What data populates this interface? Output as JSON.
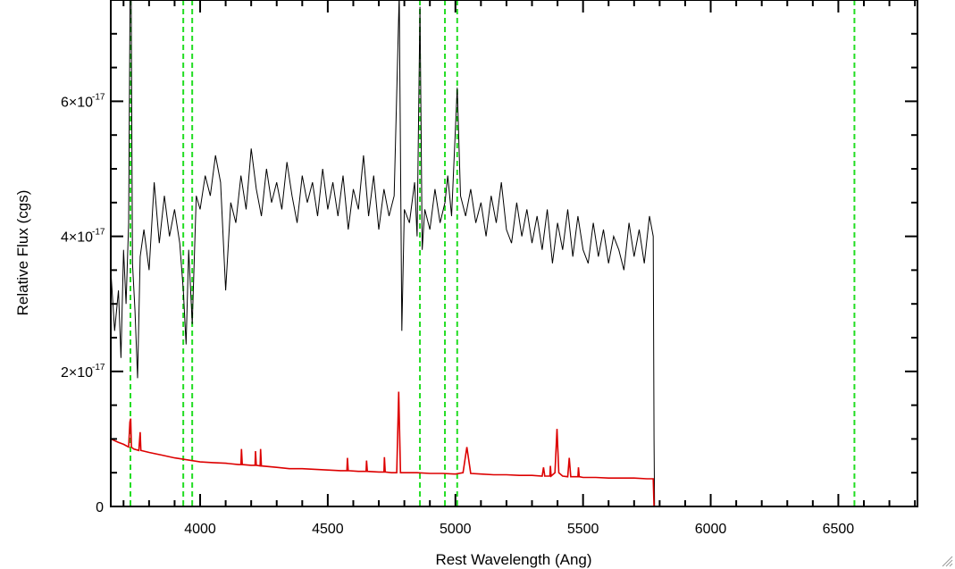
{
  "chart_data": {
    "type": "line",
    "title": "",
    "xlabel": "Rest Wavelength (Ang)",
    "ylabel": "Relative Flux (cgs)",
    "xlim": [
      3650,
      6810
    ],
    "ylim": [
      0,
      7.5e-17
    ],
    "x_ticks": [
      {
        "value": 4000,
        "label": "4000"
      },
      {
        "value": 4500,
        "label": "4500"
      },
      {
        "value": 5000,
        "label": "5000"
      },
      {
        "value": 5500,
        "label": "5500"
      },
      {
        "value": 6000,
        "label": "6000"
      },
      {
        "value": 6500,
        "label": "6500"
      }
    ],
    "y_ticks": [
      {
        "value": 0,
        "mantissa": "0",
        "exponent": ""
      },
      {
        "value": 2e-17,
        "mantissa": "2×10",
        "exponent": "-17"
      },
      {
        "value": 4e-17,
        "mantissa": "4×10",
        "exponent": "-17"
      },
      {
        "value": 6e-17,
        "mantissa": "6×10",
        "exponent": "-17"
      }
    ],
    "grid": false,
    "legend": "none",
    "vertical_lines": {
      "color": "#22dd22",
      "style": "dashed",
      "x": [
        3727,
        3934,
        3969,
        4861,
        4959,
        5007,
        6563
      ]
    },
    "series": [
      {
        "color": "#000000",
        "description": "observed spectrum",
        "x": [
          3650,
          3665,
          3680,
          3690,
          3700,
          3710,
          3720,
          3728,
          3735,
          3745,
          3755,
          3765,
          3780,
          3800,
          3820,
          3840,
          3860,
          3880,
          3900,
          3920,
          3934,
          3945,
          3955,
          3969,
          3985,
          4000,
          4020,
          4040,
          4060,
          4080,
          4100,
          4120,
          4140,
          4160,
          4180,
          4200,
          4220,
          4240,
          4260,
          4280,
          4300,
          4320,
          4340,
          4360,
          4380,
          4400,
          4420,
          4440,
          4460,
          4480,
          4500,
          4520,
          4540,
          4560,
          4580,
          4600,
          4620,
          4640,
          4660,
          4680,
          4700,
          4720,
          4740,
          4760,
          4780,
          4790,
          4800,
          4820,
          4840,
          4850,
          4861,
          4870,
          4880,
          4900,
          4920,
          4940,
          4959,
          4970,
          4985,
          5007,
          5020,
          5040,
          5060,
          5080,
          5100,
          5120,
          5140,
          5160,
          5180,
          5200,
          5220,
          5240,
          5260,
          5280,
          5300,
          5320,
          5340,
          5360,
          5380,
          5400,
          5420,
          5440,
          5460,
          5480,
          5500,
          5520,
          5540,
          5560,
          5580,
          5600,
          5620,
          5640,
          5660,
          5680,
          5700,
          5720,
          5740,
          5760,
          5775,
          5778,
          5780,
          6810
        ],
        "y": [
          3.5e-17,
          2.6e-17,
          3.2e-17,
          2.2e-17,
          3.8e-17,
          3e-17,
          4.2e-17,
          9e-17,
          3.6e-17,
          2.9e-17,
          1.9e-17,
          3.7e-17,
          4.1e-17,
          3.5e-17,
          4.8e-17,
          3.9e-17,
          4.6e-17,
          4e-17,
          4.4e-17,
          3.9e-17,
          3.2e-17,
          2.4e-17,
          3.8e-17,
          2.7e-17,
          4.6e-17,
          4.4e-17,
          4.9e-17,
          4.6e-17,
          5.2e-17,
          4.8e-17,
          3.2e-17,
          4.5e-17,
          4.2e-17,
          4.9e-17,
          4.4e-17,
          5.3e-17,
          4.7e-17,
          4.3e-17,
          5e-17,
          4.5e-17,
          4.8e-17,
          4.4e-17,
          5.1e-17,
          4.6e-17,
          4.2e-17,
          4.9e-17,
          4.5e-17,
          4.8e-17,
          4.3e-17,
          5e-17,
          4.4e-17,
          4.8e-17,
          4.3e-17,
          4.9e-17,
          4.1e-17,
          4.7e-17,
          4.4e-17,
          5.2e-17,
          4.3e-17,
          4.9e-17,
          4.1e-17,
          4.7e-17,
          4.3e-17,
          4.6e-17,
          7.6e-17,
          2.6e-17,
          4.4e-17,
          4.2e-17,
          4.8e-17,
          4e-17,
          7.4e-17,
          3.8e-17,
          4.4e-17,
          4.1e-17,
          4.7e-17,
          4.2e-17,
          4.5e-17,
          4.9e-17,
          4.3e-17,
          6.2e-17,
          4.6e-17,
          4.3e-17,
          4.7e-17,
          4.2e-17,
          4.5e-17,
          4e-17,
          4.6e-17,
          4.2e-17,
          4.8e-17,
          4.1e-17,
          3.9e-17,
          4.5e-17,
          4e-17,
          4.4e-17,
          3.9e-17,
          4.3e-17,
          3.8e-17,
          4.4e-17,
          3.6e-17,
          4.2e-17,
          3.8e-17,
          4.4e-17,
          3.7e-17,
          4.3e-17,
          3.8e-17,
          3.6e-17,
          4.2e-17,
          3.7e-17,
          4.1e-17,
          3.6e-17,
          4e-17,
          3.8e-17,
          3.5e-17,
          4.2e-17,
          3.7e-17,
          4.1e-17,
          3.6e-17,
          4.3e-17,
          4e-17,
          1e-17,
          0,
          0
        ]
      },
      {
        "color": "#dd0000",
        "description": "model / error spectrum",
        "x": [
          3650,
          3680,
          3700,
          3720,
          3725,
          3728,
          3731,
          3740,
          3760,
          3765,
          3768,
          3800,
          3850,
          3900,
          3950,
          4000,
          4050,
          4100,
          4150,
          4160,
          4162,
          4165,
          4200,
          4215,
          4217,
          4220,
          4235,
          4237,
          4240,
          4300,
          4350,
          4400,
          4450,
          4500,
          4550,
          4575,
          4577,
          4580,
          4620,
          4650,
          4652,
          4655,
          4700,
          4720,
          4722,
          4725,
          4750,
          4770,
          4778,
          4785,
          4800,
          4850,
          4900,
          4950,
          5000,
          5030,
          5045,
          5060,
          5100,
          5150,
          5200,
          5250,
          5300,
          5340,
          5345,
          5350,
          5370,
          5372,
          5375,
          5390,
          5398,
          5405,
          5420,
          5440,
          5446,
          5452,
          5470,
          5480,
          5482,
          5485,
          5500,
          5550,
          5600,
          5650,
          5700,
          5750,
          5775,
          5778,
          5780,
          6810
        ],
        "y": [
          1e-17,
          9.5e-18,
          9.2e-18,
          8.8e-18,
          1.25e-17,
          1.3e-17,
          8.8e-18,
          8.5e-18,
          8.3e-18,
          1.1e-17,
          8.3e-18,
          8e-18,
          7.6e-18,
          7.2e-18,
          6.9e-18,
          6.6e-18,
          6.5e-18,
          6.4e-18,
          6.2e-18,
          6.2e-18,
          8.5e-18,
          6.2e-18,
          6.1e-18,
          6.1e-18,
          8.2e-18,
          6.1e-18,
          6e-18,
          8.5e-18,
          6e-18,
          5.8e-18,
          5.6e-18,
          5.6e-18,
          5.5e-18,
          5.4e-18,
          5.3e-18,
          5.3e-18,
          7.2e-18,
          5.3e-18,
          5.2e-18,
          5.2e-18,
          6.8e-18,
          5.2e-18,
          5.1e-18,
          5.1e-18,
          7.3e-18,
          5.1e-18,
          5e-18,
          5e-18,
          1.7e-17,
          5e-18,
          5e-18,
          5e-18,
          4.9e-18,
          4.9e-18,
          4.8e-18,
          5e-18,
          8.8e-18,
          4.9e-18,
          4.8e-18,
          4.7e-18,
          4.7e-18,
          4.6e-18,
          4.6e-18,
          4.5e-18,
          5.8e-18,
          4.5e-18,
          4.5e-18,
          6e-18,
          4.5e-18,
          5e-18,
          1.15e-17,
          5e-18,
          4.5e-18,
          4.4e-18,
          7.2e-18,
          4.4e-18,
          4.4e-18,
          4.4e-18,
          5.8e-18,
          4.4e-18,
          4.3e-18,
          4.3e-18,
          4.2e-18,
          4.2e-18,
          4.2e-18,
          4.1e-18,
          4.1e-18,
          0,
          0,
          0
        ]
      }
    ]
  }
}
